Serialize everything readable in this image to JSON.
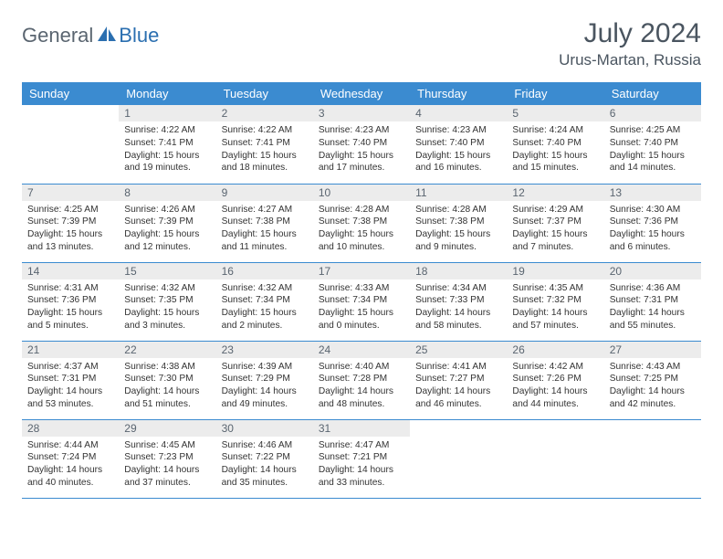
{
  "brand": {
    "part1": "General",
    "part2": "Blue"
  },
  "header": {
    "month": "July 2024",
    "location": "Urus-Martan, Russia"
  },
  "colors": {
    "header_bg": "#3b8bd0",
    "header_text": "#ffffff",
    "daynum_bg": "#ececec",
    "daynum_text": "#5a6570",
    "border": "#3b8bd0",
    "title_text": "#4a5560",
    "logo_gray": "#5a6570",
    "logo_blue": "#2b6fb0"
  },
  "weekdays": [
    "Sunday",
    "Monday",
    "Tuesday",
    "Wednesday",
    "Thursday",
    "Friday",
    "Saturday"
  ],
  "cells": [
    {
      "day": "",
      "sunrise": "",
      "sunset": "",
      "dl1": "",
      "dl2": ""
    },
    {
      "day": "1",
      "sunrise": "Sunrise: 4:22 AM",
      "sunset": "Sunset: 7:41 PM",
      "dl1": "Daylight: 15 hours",
      "dl2": "and 19 minutes."
    },
    {
      "day": "2",
      "sunrise": "Sunrise: 4:22 AM",
      "sunset": "Sunset: 7:41 PM",
      "dl1": "Daylight: 15 hours",
      "dl2": "and 18 minutes."
    },
    {
      "day": "3",
      "sunrise": "Sunrise: 4:23 AM",
      "sunset": "Sunset: 7:40 PM",
      "dl1": "Daylight: 15 hours",
      "dl2": "and 17 minutes."
    },
    {
      "day": "4",
      "sunrise": "Sunrise: 4:23 AM",
      "sunset": "Sunset: 7:40 PM",
      "dl1": "Daylight: 15 hours",
      "dl2": "and 16 minutes."
    },
    {
      "day": "5",
      "sunrise": "Sunrise: 4:24 AM",
      "sunset": "Sunset: 7:40 PM",
      "dl1": "Daylight: 15 hours",
      "dl2": "and 15 minutes."
    },
    {
      "day": "6",
      "sunrise": "Sunrise: 4:25 AM",
      "sunset": "Sunset: 7:40 PM",
      "dl1": "Daylight: 15 hours",
      "dl2": "and 14 minutes."
    },
    {
      "day": "7",
      "sunrise": "Sunrise: 4:25 AM",
      "sunset": "Sunset: 7:39 PM",
      "dl1": "Daylight: 15 hours",
      "dl2": "and 13 minutes."
    },
    {
      "day": "8",
      "sunrise": "Sunrise: 4:26 AM",
      "sunset": "Sunset: 7:39 PM",
      "dl1": "Daylight: 15 hours",
      "dl2": "and 12 minutes."
    },
    {
      "day": "9",
      "sunrise": "Sunrise: 4:27 AM",
      "sunset": "Sunset: 7:38 PM",
      "dl1": "Daylight: 15 hours",
      "dl2": "and 11 minutes."
    },
    {
      "day": "10",
      "sunrise": "Sunrise: 4:28 AM",
      "sunset": "Sunset: 7:38 PM",
      "dl1": "Daylight: 15 hours",
      "dl2": "and 10 minutes."
    },
    {
      "day": "11",
      "sunrise": "Sunrise: 4:28 AM",
      "sunset": "Sunset: 7:38 PM",
      "dl1": "Daylight: 15 hours",
      "dl2": "and 9 minutes."
    },
    {
      "day": "12",
      "sunrise": "Sunrise: 4:29 AM",
      "sunset": "Sunset: 7:37 PM",
      "dl1": "Daylight: 15 hours",
      "dl2": "and 7 minutes."
    },
    {
      "day": "13",
      "sunrise": "Sunrise: 4:30 AM",
      "sunset": "Sunset: 7:36 PM",
      "dl1": "Daylight: 15 hours",
      "dl2": "and 6 minutes."
    },
    {
      "day": "14",
      "sunrise": "Sunrise: 4:31 AM",
      "sunset": "Sunset: 7:36 PM",
      "dl1": "Daylight: 15 hours",
      "dl2": "and 5 minutes."
    },
    {
      "day": "15",
      "sunrise": "Sunrise: 4:32 AM",
      "sunset": "Sunset: 7:35 PM",
      "dl1": "Daylight: 15 hours",
      "dl2": "and 3 minutes."
    },
    {
      "day": "16",
      "sunrise": "Sunrise: 4:32 AM",
      "sunset": "Sunset: 7:34 PM",
      "dl1": "Daylight: 15 hours",
      "dl2": "and 2 minutes."
    },
    {
      "day": "17",
      "sunrise": "Sunrise: 4:33 AM",
      "sunset": "Sunset: 7:34 PM",
      "dl1": "Daylight: 15 hours",
      "dl2": "and 0 minutes."
    },
    {
      "day": "18",
      "sunrise": "Sunrise: 4:34 AM",
      "sunset": "Sunset: 7:33 PM",
      "dl1": "Daylight: 14 hours",
      "dl2": "and 58 minutes."
    },
    {
      "day": "19",
      "sunrise": "Sunrise: 4:35 AM",
      "sunset": "Sunset: 7:32 PM",
      "dl1": "Daylight: 14 hours",
      "dl2": "and 57 minutes."
    },
    {
      "day": "20",
      "sunrise": "Sunrise: 4:36 AM",
      "sunset": "Sunset: 7:31 PM",
      "dl1": "Daylight: 14 hours",
      "dl2": "and 55 minutes."
    },
    {
      "day": "21",
      "sunrise": "Sunrise: 4:37 AM",
      "sunset": "Sunset: 7:31 PM",
      "dl1": "Daylight: 14 hours",
      "dl2": "and 53 minutes."
    },
    {
      "day": "22",
      "sunrise": "Sunrise: 4:38 AM",
      "sunset": "Sunset: 7:30 PM",
      "dl1": "Daylight: 14 hours",
      "dl2": "and 51 minutes."
    },
    {
      "day": "23",
      "sunrise": "Sunrise: 4:39 AM",
      "sunset": "Sunset: 7:29 PM",
      "dl1": "Daylight: 14 hours",
      "dl2": "and 49 minutes."
    },
    {
      "day": "24",
      "sunrise": "Sunrise: 4:40 AM",
      "sunset": "Sunset: 7:28 PM",
      "dl1": "Daylight: 14 hours",
      "dl2": "and 48 minutes."
    },
    {
      "day": "25",
      "sunrise": "Sunrise: 4:41 AM",
      "sunset": "Sunset: 7:27 PM",
      "dl1": "Daylight: 14 hours",
      "dl2": "and 46 minutes."
    },
    {
      "day": "26",
      "sunrise": "Sunrise: 4:42 AM",
      "sunset": "Sunset: 7:26 PM",
      "dl1": "Daylight: 14 hours",
      "dl2": "and 44 minutes."
    },
    {
      "day": "27",
      "sunrise": "Sunrise: 4:43 AM",
      "sunset": "Sunset: 7:25 PM",
      "dl1": "Daylight: 14 hours",
      "dl2": "and 42 minutes."
    },
    {
      "day": "28",
      "sunrise": "Sunrise: 4:44 AM",
      "sunset": "Sunset: 7:24 PM",
      "dl1": "Daylight: 14 hours",
      "dl2": "and 40 minutes."
    },
    {
      "day": "29",
      "sunrise": "Sunrise: 4:45 AM",
      "sunset": "Sunset: 7:23 PM",
      "dl1": "Daylight: 14 hours",
      "dl2": "and 37 minutes."
    },
    {
      "day": "30",
      "sunrise": "Sunrise: 4:46 AM",
      "sunset": "Sunset: 7:22 PM",
      "dl1": "Daylight: 14 hours",
      "dl2": "and 35 minutes."
    },
    {
      "day": "31",
      "sunrise": "Sunrise: 4:47 AM",
      "sunset": "Sunset: 7:21 PM",
      "dl1": "Daylight: 14 hours",
      "dl2": "and 33 minutes."
    },
    {
      "day": "",
      "sunrise": "",
      "sunset": "",
      "dl1": "",
      "dl2": ""
    },
    {
      "day": "",
      "sunrise": "",
      "sunset": "",
      "dl1": "",
      "dl2": ""
    },
    {
      "day": "",
      "sunrise": "",
      "sunset": "",
      "dl1": "",
      "dl2": ""
    }
  ]
}
